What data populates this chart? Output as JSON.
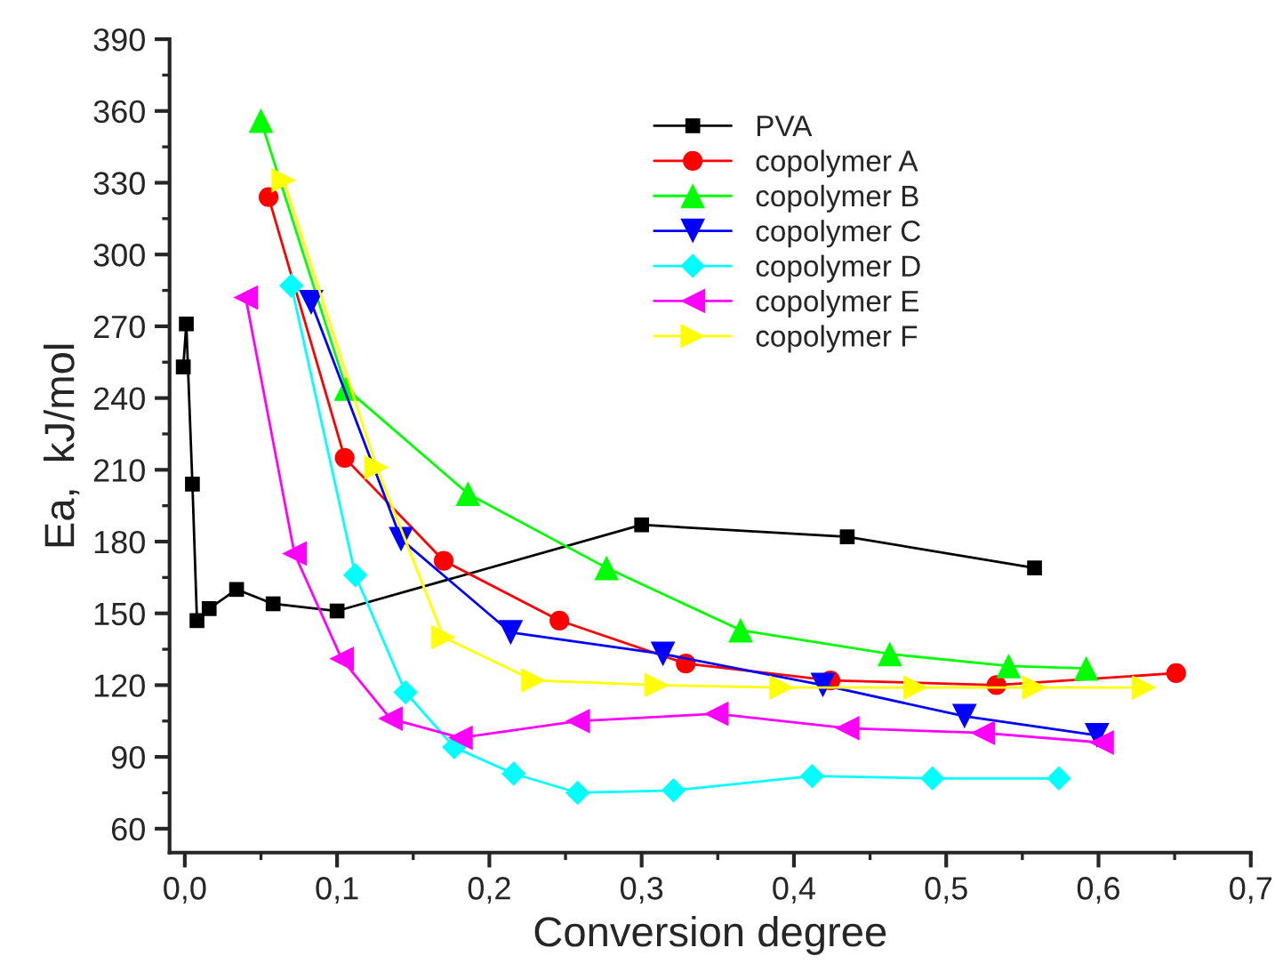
{
  "chart_data": {
    "type": "line",
    "xlabel": "Conversion degree",
    "ylabel": "Ea,  kJ/mol",
    "xlim": [
      -0.01,
      0.7
    ],
    "ylim": [
      50,
      390
    ],
    "xticks": [
      {
        "value": 0,
        "label": "0,0"
      },
      {
        "value": 0.1,
        "label": "0,1"
      },
      {
        "value": 0.2,
        "label": "0,2"
      },
      {
        "value": 0.3,
        "label": "0,3"
      },
      {
        "value": 0.4,
        "label": "0,4"
      },
      {
        "value": 0.5,
        "label": "0,5"
      },
      {
        "value": 0.6,
        "label": "0,6"
      },
      {
        "value": 0.7,
        "label": "0,7"
      }
    ],
    "yticks": [
      60,
      90,
      120,
      150,
      180,
      210,
      240,
      270,
      300,
      330,
      360,
      390
    ],
    "legend": "top right",
    "grid": false,
    "line_style": "solid",
    "series": [
      {
        "name": "PVA",
        "color": "#000000",
        "marker": "square",
        "x": [
          -0.001,
          0.001,
          0.005,
          0.008,
          0.016,
          0.034,
          0.058,
          0.1,
          0.3,
          0.435,
          0.558
        ],
        "values": [
          253,
          271,
          204,
          147,
          152,
          160,
          154,
          151,
          187,
          182,
          169
        ]
      },
      {
        "name": "copolymer A",
        "color": "#ff0000",
        "marker": "circle",
        "x": [
          0.055,
          0.105,
          0.17,
          0.246,
          0.329,
          0.424,
          0.533,
          0.651
        ],
        "values": [
          324,
          215,
          172,
          147,
          129,
          122,
          120,
          125
        ]
      },
      {
        "name": "copolymer B",
        "color": "#00ff00",
        "marker": "triangle",
        "x": [
          0.05,
          0.106,
          0.186,
          0.277,
          0.365,
          0.463,
          0.541,
          0.592
        ],
        "values": [
          356,
          244,
          200,
          169,
          143,
          133,
          128,
          127
        ]
      },
      {
        "name": "copolymer C",
        "color": "#0000ff",
        "marker": "triangle-down",
        "x": [
          0.083,
          0.142,
          0.214,
          0.314,
          0.419,
          0.512,
          0.599
        ],
        "values": [
          280,
          181,
          142,
          133,
          120,
          107,
          99
        ]
      },
      {
        "name": "copolymer D",
        "color": "#00ffff",
        "marker": "diamond",
        "x": [
          0.07,
          0.112,
          0.145,
          0.177,
          0.216,
          0.258,
          0.321,
          0.412,
          0.491,
          0.574
        ],
        "values": [
          287,
          166,
          117,
          94,
          83,
          75,
          76,
          82,
          81,
          81
        ]
      },
      {
        "name": "copolymer E",
        "color": "#ff00ff",
        "marker": "triangle-left",
        "x": [
          0.04,
          0.072,
          0.103,
          0.135,
          0.181,
          0.258,
          0.349,
          0.435,
          0.524,
          0.602
        ],
        "values": [
          282,
          175,
          131,
          106,
          98,
          105,
          108,
          102,
          100,
          96
        ]
      },
      {
        "name": "copolymer F",
        "color": "#ffff00",
        "marker": "triangle-right",
        "x": [
          0.065,
          0.126,
          0.17,
          0.229,
          0.31,
          0.392,
          0.48,
          0.558,
          0.63
        ],
        "values": [
          331,
          211,
          140,
          122,
          120,
          119,
          119,
          119,
          119
        ]
      }
    ]
  }
}
